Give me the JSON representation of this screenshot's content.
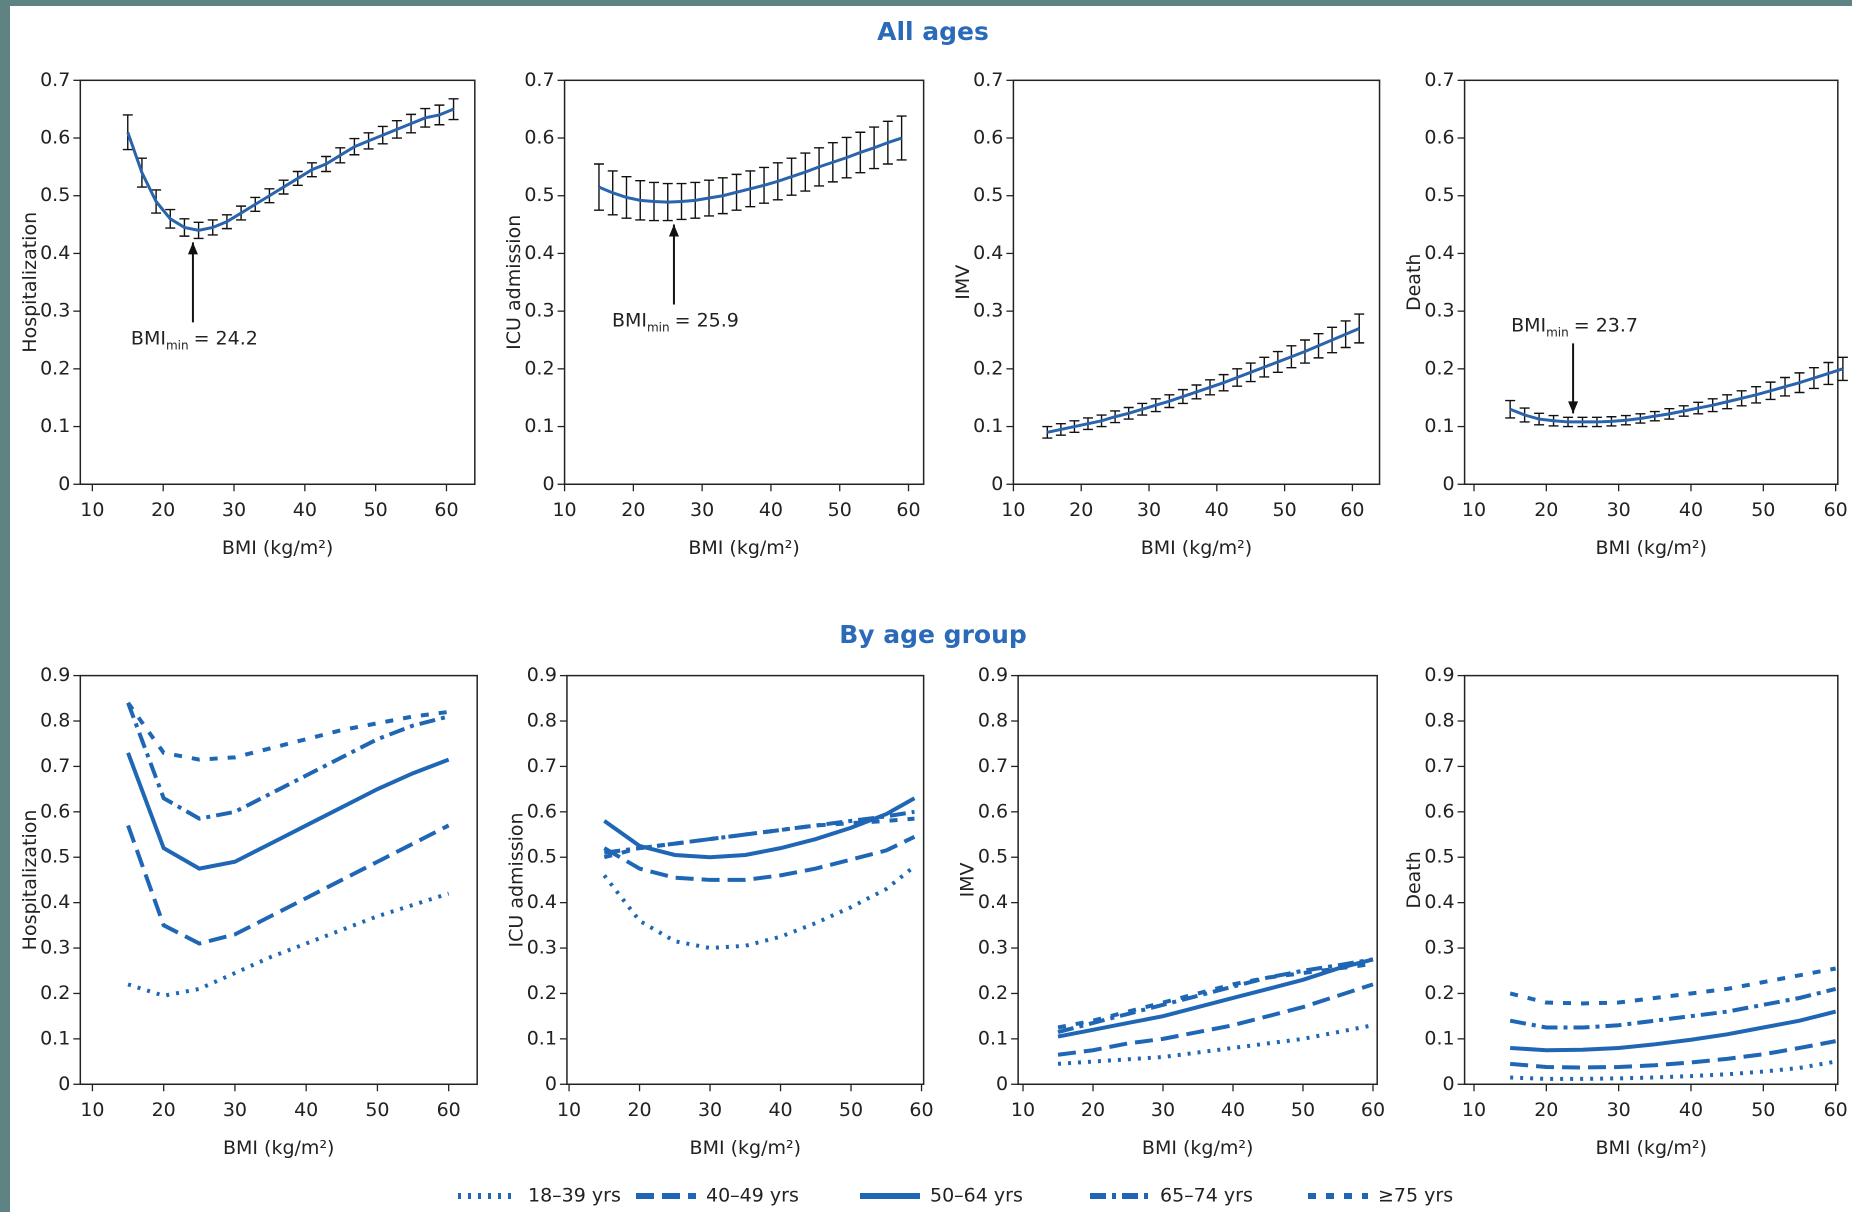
{
  "headings": [
    "All ages",
    "By age group"
  ],
  "chart_data": [
    {
      "type": "errorline",
      "x_label": "BMI (kg/m²)",
      "y_label": "Hospitalization",
      "xlim": [
        8.3,
        64
      ],
      "ylim": [
        0,
        0.7
      ],
      "xticks": [
        10,
        20,
        30,
        40,
        50,
        60
      ],
      "yticks": [
        0,
        0.1,
        0.2,
        0.3,
        0.4,
        0.5,
        0.6,
        0.7
      ],
      "annotation": {
        "text": "BMI",
        "subscript": "min",
        "value": 24.2,
        "value_label": "= 24.2"
      },
      "x": [
        15,
        17,
        19,
        21,
        23,
        25,
        27,
        29,
        31,
        33,
        35,
        37,
        39,
        41,
        43,
        45,
        47,
        49,
        51,
        53,
        55,
        57,
        59,
        61
      ],
      "series": [
        {
          "color": "#2a64ad",
          "values": [
            0.61,
            0.54,
            0.49,
            0.46,
            0.445,
            0.44,
            0.445,
            0.455,
            0.47,
            0.485,
            0.5,
            0.515,
            0.53,
            0.545,
            0.555,
            0.57,
            0.585,
            0.595,
            0.605,
            0.615,
            0.625,
            0.635,
            0.64,
            0.65
          ],
          "errors": [
            0.03,
            0.025,
            0.02,
            0.016,
            0.015,
            0.014,
            0.013,
            0.012,
            0.012,
            0.012,
            0.012,
            0.012,
            0.012,
            0.012,
            0.013,
            0.013,
            0.014,
            0.014,
            0.015,
            0.015,
            0.016,
            0.016,
            0.017,
            0.018
          ]
        }
      ]
    },
    {
      "type": "errorline",
      "x_label": "BMI (kg/m²)",
      "y_label": "ICU admission",
      "xlim": [
        10,
        62.2
      ],
      "ylim": [
        0,
        0.7
      ],
      "xticks": [
        10,
        20,
        30,
        40,
        50,
        60
      ],
      "yticks": [
        0,
        0.1,
        0.2,
        0.3,
        0.4,
        0.5,
        0.6,
        0.7
      ],
      "annotation": {
        "text": "BMI",
        "subscript": "min",
        "value": 25.9,
        "value_label": "= 25.9"
      },
      "x": [
        15,
        17,
        19,
        21,
        23,
        25,
        27,
        29,
        31,
        33,
        35,
        37,
        39,
        41,
        43,
        45,
        47,
        49,
        51,
        53,
        55,
        57,
        59
      ],
      "series": [
        {
          "color": "#2a64ad",
          "values": [
            0.515,
            0.505,
            0.497,
            0.492,
            0.49,
            0.489,
            0.49,
            0.492,
            0.496,
            0.5,
            0.506,
            0.512,
            0.518,
            0.525,
            0.533,
            0.541,
            0.55,
            0.558,
            0.566,
            0.575,
            0.583,
            0.592,
            0.6
          ],
          "errors": [
            0.04,
            0.038,
            0.036,
            0.034,
            0.033,
            0.032,
            0.031,
            0.031,
            0.031,
            0.031,
            0.031,
            0.031,
            0.031,
            0.032,
            0.032,
            0.033,
            0.033,
            0.034,
            0.035,
            0.035,
            0.036,
            0.037,
            0.038
          ]
        }
      ]
    },
    {
      "type": "errorline",
      "x_label": "BMI (kg/m²)",
      "y_label": "IMV",
      "xlim": [
        10,
        64
      ],
      "ylim": [
        0,
        0.7
      ],
      "xticks": [
        10,
        20,
        30,
        40,
        50,
        60
      ],
      "yticks": [
        0,
        0.1,
        0.2,
        0.3,
        0.4,
        0.5,
        0.6,
        0.7
      ],
      "x": [
        15,
        17,
        19,
        21,
        23,
        25,
        27,
        29,
        31,
        33,
        35,
        37,
        39,
        41,
        43,
        45,
        47,
        49,
        51,
        53,
        55,
        57,
        59,
        61
      ],
      "series": [
        {
          "color": "#2a64ad",
          "values": [
            0.09,
            0.095,
            0.1,
            0.105,
            0.11,
            0.117,
            0.123,
            0.13,
            0.137,
            0.144,
            0.152,
            0.16,
            0.168,
            0.176,
            0.185,
            0.194,
            0.203,
            0.212,
            0.221,
            0.23,
            0.24,
            0.25,
            0.26,
            0.27
          ],
          "errors": [
            0.01,
            0.01,
            0.01,
            0.01,
            0.01,
            0.01,
            0.01,
            0.01,
            0.011,
            0.011,
            0.012,
            0.012,
            0.013,
            0.014,
            0.015,
            0.016,
            0.017,
            0.018,
            0.019,
            0.02,
            0.021,
            0.022,
            0.023,
            0.025
          ]
        }
      ]
    },
    {
      "type": "errorline",
      "x_label": "BMI (kg/m²)",
      "y_label": "Death",
      "xlim": [
        8.7,
        60.3
      ],
      "ylim": [
        0,
        0.7
      ],
      "xticks": [
        10,
        20,
        30,
        40,
        50,
        60
      ],
      "yticks": [
        0,
        0.1,
        0.2,
        0.3,
        0.4,
        0.5,
        0.6,
        0.7
      ],
      "annotation": {
        "text": "BMI",
        "subscript": "min",
        "value": 23.7,
        "value_label": "= 23.7"
      },
      "x": [
        15,
        17,
        19,
        21,
        23,
        25,
        27,
        29,
        31,
        33,
        35,
        37,
        39,
        41,
        43,
        45,
        47,
        49,
        51,
        53,
        55,
        57,
        59,
        61
      ],
      "series": [
        {
          "color": "#2a64ad",
          "values": [
            0.13,
            0.12,
            0.113,
            0.11,
            0.108,
            0.108,
            0.108,
            0.109,
            0.111,
            0.114,
            0.118,
            0.122,
            0.127,
            0.132,
            0.137,
            0.143,
            0.149,
            0.155,
            0.162,
            0.169,
            0.176,
            0.184,
            0.192,
            0.2
          ],
          "errors": [
            0.015,
            0.012,
            0.01,
            0.009,
            0.008,
            0.008,
            0.008,
            0.008,
            0.008,
            0.008,
            0.008,
            0.009,
            0.009,
            0.01,
            0.011,
            0.012,
            0.013,
            0.014,
            0.015,
            0.016,
            0.017,
            0.018,
            0.019,
            0.02
          ]
        }
      ]
    },
    {
      "type": "line",
      "x_label": "BMI (kg/m²)",
      "y_label": "Hospitalization",
      "xlim": [
        8.3,
        64
      ],
      "ylim": [
        0,
        0.9
      ],
      "xticks": [
        10,
        20,
        30,
        40,
        50,
        60
      ],
      "yticks": [
        0,
        0.1,
        0.2,
        0.3,
        0.4,
        0.5,
        0.6,
        0.7,
        0.8,
        0.9
      ],
      "legend": "bottom",
      "x": [
        15,
        20,
        25,
        30,
        35,
        40,
        45,
        50,
        55,
        60
      ],
      "series": [
        {
          "name": "18–39 yrs",
          "color": "#1f66b5",
          "dash": "dotted",
          "values": [
            0.22,
            0.195,
            0.21,
            0.245,
            0.28,
            0.31,
            0.34,
            0.37,
            0.395,
            0.42
          ]
        },
        {
          "name": "40–49 yrs",
          "color": "#1f66b5",
          "dash": "dashed",
          "values": [
            0.57,
            0.35,
            0.31,
            0.33,
            0.37,
            0.41,
            0.45,
            0.49,
            0.53,
            0.57
          ]
        },
        {
          "name": "50–64 yrs",
          "color": "#1f66b5",
          "dash": "solid",
          "values": [
            0.73,
            0.52,
            0.475,
            0.49,
            0.53,
            0.57,
            0.61,
            0.65,
            0.685,
            0.715
          ]
        },
        {
          "name": "65–74 yrs",
          "color": "#1f66b5",
          "dash": "dashdot",
          "values": [
            0.84,
            0.63,
            0.585,
            0.6,
            0.64,
            0.68,
            0.72,
            0.76,
            0.79,
            0.81
          ]
        },
        {
          "name": "≥75 yrs",
          "color": "#1f66b5",
          "dash": "shortdash",
          "values": [
            0.84,
            0.73,
            0.715,
            0.72,
            0.74,
            0.76,
            0.78,
            0.795,
            0.81,
            0.82
          ]
        }
      ]
    },
    {
      "type": "line",
      "x_label": "BMI (kg/m²)",
      "y_label": "ICU admission",
      "xlim": [
        9.7,
        60.3
      ],
      "ylim": [
        0,
        0.9
      ],
      "xticks": [
        10,
        20,
        30,
        40,
        50,
        60
      ],
      "yticks": [
        0,
        0.1,
        0.2,
        0.3,
        0.4,
        0.5,
        0.6,
        0.7,
        0.8,
        0.9
      ],
      "x": [
        15,
        20,
        25,
        30,
        35,
        40,
        45,
        50,
        55,
        59
      ],
      "series": [
        {
          "name": "18–39 yrs",
          "color": "#1f66b5",
          "dash": "dotted",
          "values": [
            0.46,
            0.36,
            0.315,
            0.3,
            0.305,
            0.325,
            0.355,
            0.39,
            0.43,
            0.48
          ]
        },
        {
          "name": "40–49 yrs",
          "color": "#1f66b5",
          "dash": "dashed",
          "values": [
            0.52,
            0.475,
            0.455,
            0.45,
            0.45,
            0.46,
            0.475,
            0.495,
            0.515,
            0.545
          ]
        },
        {
          "name": "50–64 yrs",
          "color": "#1f66b5",
          "dash": "solid",
          "values": [
            0.58,
            0.525,
            0.505,
            0.5,
            0.505,
            0.52,
            0.54,
            0.565,
            0.595,
            0.63
          ]
        },
        {
          "name": "65–74 yrs",
          "color": "#1f66b5",
          "dash": "dashdot",
          "values": [
            0.51,
            0.52,
            0.53,
            0.54,
            0.55,
            0.56,
            0.57,
            0.58,
            0.59,
            0.6
          ]
        },
        {
          "name": "≥75 yrs",
          "color": "#1f66b5",
          "dash": "shortdash",
          "values": [
            0.5,
            0.52,
            0.53,
            0.54,
            0.55,
            0.56,
            0.57,
            0.575,
            0.58,
            0.585
          ]
        }
      ]
    },
    {
      "type": "line",
      "x_label": "BMI (kg/m²)",
      "y_label": "IMV",
      "xlim": [
        9.3,
        60.6
      ],
      "ylim": [
        0,
        0.9
      ],
      "xticks": [
        10,
        20,
        30,
        40,
        50,
        60
      ],
      "yticks": [
        0,
        0.1,
        0.2,
        0.3,
        0.4,
        0.5,
        0.6,
        0.7,
        0.8,
        0.9
      ],
      "x": [
        15,
        20,
        25,
        30,
        35,
        40,
        45,
        50,
        55,
        60
      ],
      "series": [
        {
          "name": "18–39 yrs",
          "color": "#1f66b5",
          "dash": "dotted",
          "values": [
            0.045,
            0.05,
            0.055,
            0.06,
            0.07,
            0.08,
            0.09,
            0.1,
            0.115,
            0.13
          ]
        },
        {
          "name": "40–49 yrs",
          "color": "#1f66b5",
          "dash": "dashed",
          "values": [
            0.065,
            0.075,
            0.09,
            0.1,
            0.115,
            0.13,
            0.15,
            0.17,
            0.195,
            0.22
          ]
        },
        {
          "name": "50–64 yrs",
          "color": "#1f66b5",
          "dash": "solid",
          "values": [
            0.105,
            0.12,
            0.135,
            0.15,
            0.17,
            0.19,
            0.21,
            0.23,
            0.255,
            0.275
          ]
        },
        {
          "name": "65–74 yrs",
          "color": "#1f66b5",
          "dash": "dashdot",
          "values": [
            0.115,
            0.135,
            0.155,
            0.175,
            0.195,
            0.215,
            0.235,
            0.25,
            0.262,
            0.275
          ]
        },
        {
          "name": "≥75 yrs",
          "color": "#1f66b5",
          "dash": "shortdash",
          "values": [
            0.125,
            0.14,
            0.16,
            0.18,
            0.2,
            0.22,
            0.235,
            0.245,
            0.255,
            0.265
          ]
        }
      ]
    },
    {
      "type": "line",
      "x_label": "BMI (kg/m²)",
      "y_label": "Death",
      "xlim": [
        8.7,
        60.3
      ],
      "ylim": [
        0,
        0.9
      ],
      "xticks": [
        10,
        20,
        30,
        40,
        50,
        60
      ],
      "yticks": [
        0,
        0.1,
        0.2,
        0.3,
        0.4,
        0.5,
        0.6,
        0.7,
        0.8,
        0.9
      ],
      "x": [
        15,
        20,
        25,
        30,
        35,
        40,
        45,
        50,
        55,
        60
      ],
      "series": [
        {
          "name": "18–39 yrs",
          "color": "#1f66b5",
          "dash": "dotted",
          "values": [
            0.015,
            0.012,
            0.012,
            0.013,
            0.015,
            0.018,
            0.022,
            0.028,
            0.036,
            0.05
          ]
        },
        {
          "name": "40–49 yrs",
          "color": "#1f66b5",
          "dash": "dashed",
          "values": [
            0.045,
            0.038,
            0.037,
            0.038,
            0.042,
            0.048,
            0.056,
            0.066,
            0.08,
            0.095
          ]
        },
        {
          "name": "50–64 yrs",
          "color": "#1f66b5",
          "dash": "solid",
          "values": [
            0.08,
            0.075,
            0.076,
            0.08,
            0.088,
            0.098,
            0.11,
            0.125,
            0.14,
            0.16
          ]
        },
        {
          "name": "65–74 yrs",
          "color": "#1f66b5",
          "dash": "dashdot",
          "values": [
            0.14,
            0.125,
            0.125,
            0.13,
            0.14,
            0.15,
            0.16,
            0.175,
            0.19,
            0.21
          ]
        },
        {
          "name": "≥75 yrs",
          "color": "#1f66b5",
          "dash": "shortdash",
          "values": [
            0.2,
            0.18,
            0.178,
            0.18,
            0.19,
            0.2,
            0.21,
            0.225,
            0.24,
            0.255
          ]
        }
      ]
    }
  ]
}
